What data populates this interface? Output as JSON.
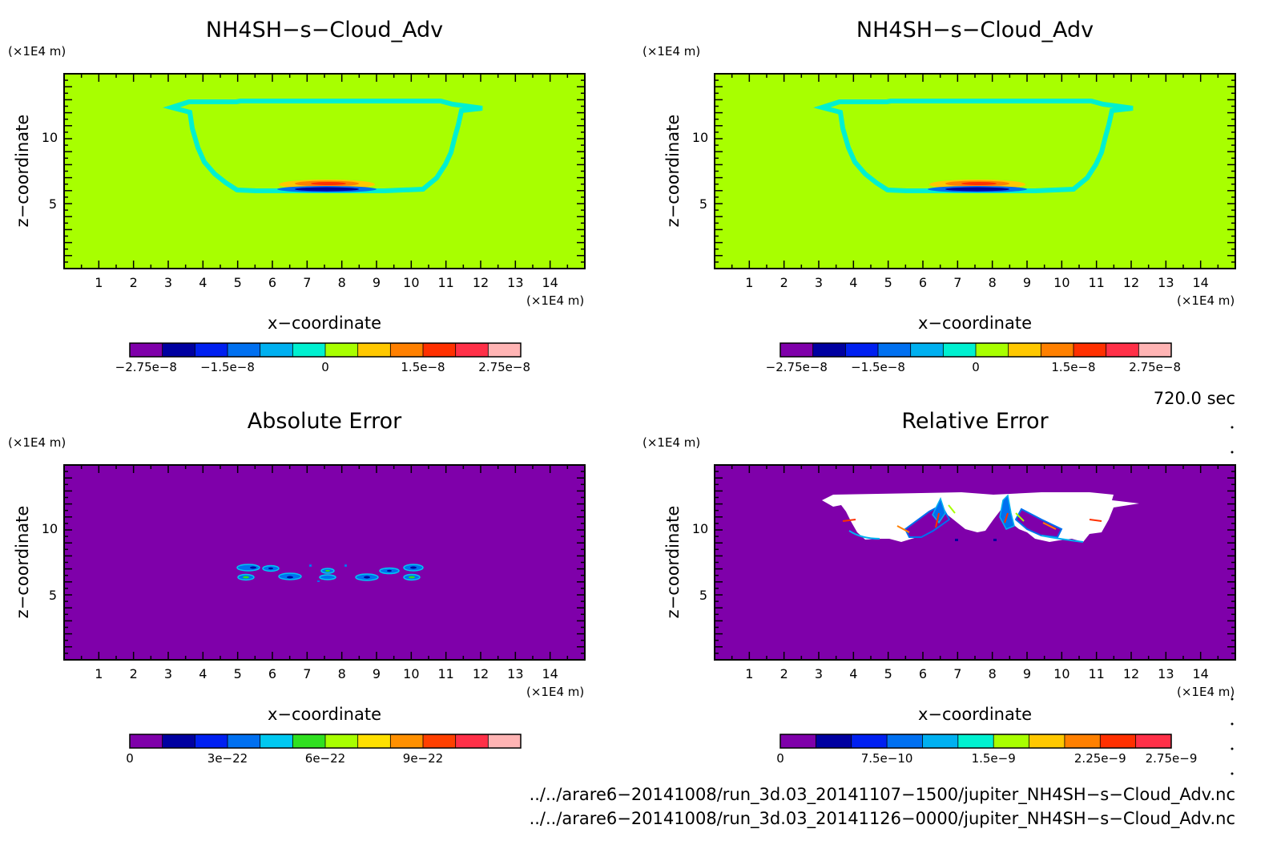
{
  "chart_data": [
    {
      "type": "heatmap",
      "title": "NH4SH−s−Cloud_Adv",
      "xlabel": "x−coordinate",
      "ylabel": "z−coordinate",
      "x_unit": "(×1E4 m)",
      "y_unit": "(×1E4 m)",
      "xlim": [
        0,
        15
      ],
      "ylim": [
        0,
        15
      ],
      "x_ticks": [
        "1",
        "2",
        "3",
        "4",
        "5",
        "6",
        "7",
        "8",
        "9",
        "10",
        "11",
        "12",
        "13",
        "14"
      ],
      "y_ticks": [
        "5",
        "10"
      ],
      "background_value": 0,
      "colorbar": {
        "colors": [
          "#7f00aa",
          "#0000a0",
          "#0020f0",
          "#0070f0",
          "#00b0f0",
          "#00f0d0",
          "#a8ff00",
          "#ffc800",
          "#ff8000",
          "#ff3000",
          "#ff3048",
          "#ffb4b4"
        ],
        "labels": [
          "−2.75e−8",
          "−1.5e−8",
          "0",
          "1.5e−8",
          "2.75e−8"
        ]
      }
    },
    {
      "type": "heatmap",
      "title": "NH4SH−s−Cloud_Adv",
      "xlabel": "x−coordinate",
      "ylabel": "z−coordinate",
      "x_unit": "(×1E4 m)",
      "y_unit": "(×1E4 m)",
      "xlim": [
        0,
        15
      ],
      "ylim": [
        0,
        15
      ],
      "x_ticks": [
        "1",
        "2",
        "3",
        "4",
        "5",
        "6",
        "7",
        "8",
        "9",
        "10",
        "11",
        "12",
        "13",
        "14"
      ],
      "y_ticks": [
        "5",
        "10"
      ],
      "background_value": 0,
      "colorbar": {
        "colors": [
          "#7f00aa",
          "#0000a0",
          "#0020f0",
          "#0070f0",
          "#00b0f0",
          "#00f0d0",
          "#a8ff00",
          "#ffc800",
          "#ff8000",
          "#ff3000",
          "#ff3048",
          "#ffb4b4"
        ],
        "labels": [
          "−2.75e−8",
          "−1.5e−8",
          "0",
          "1.5e−8",
          "2.75e−8"
        ]
      }
    },
    {
      "type": "heatmap",
      "title": "Absolute Error",
      "xlabel": "x−coordinate",
      "ylabel": "z−coordinate",
      "x_unit": "(×1E4 m)",
      "y_unit": "(×1E4 m)",
      "xlim": [
        0,
        15
      ],
      "ylim": [
        0,
        15
      ],
      "x_ticks": [
        "1",
        "2",
        "3",
        "4",
        "5",
        "6",
        "7",
        "8",
        "9",
        "10",
        "11",
        "12",
        "13",
        "14"
      ],
      "y_ticks": [
        "5",
        "10"
      ],
      "background_value": 0,
      "colorbar": {
        "colors": [
          "#7f00aa",
          "#0000a0",
          "#0020f0",
          "#0070f0",
          "#00c8f0",
          "#30e020",
          "#a8ff00",
          "#ffe000",
          "#ff9000",
          "#ff4000",
          "#ff3048",
          "#ffb4b4"
        ],
        "labels": [
          "0",
          "3e−22",
          "6e−22",
          "9e−22"
        ]
      }
    },
    {
      "type": "heatmap",
      "title": "Relative Error",
      "xlabel": "x−coordinate",
      "ylabel": "z−coordinate",
      "x_unit": "(×1E4 m)",
      "y_unit": "(×1E4 m)",
      "xlim": [
        0,
        15
      ],
      "ylim": [
        0,
        15
      ],
      "x_ticks": [
        "1",
        "2",
        "3",
        "4",
        "5",
        "6",
        "7",
        "8",
        "9",
        "10",
        "11",
        "12",
        "13",
        "14"
      ],
      "y_ticks": [
        "5",
        "10"
      ],
      "background_value": 0,
      "colorbar": {
        "colors": [
          "#7f00aa",
          "#0000a0",
          "#0020f0",
          "#0070f0",
          "#00b0f0",
          "#00f0d0",
          "#a8ff00",
          "#ffc800",
          "#ff8000",
          "#ff3000",
          "#ff3048"
        ],
        "labels": [
          "0",
          "7.5e−10",
          "1.5e−9",
          "2.25e−9",
          "2.75e−9"
        ]
      }
    }
  ],
  "time_label": "720.0 sec",
  "files": [
    "../../arare6−20141008/run_3d.03_20141107−1500/jupiter_NH4SH−s−Cloud_Adv.nc",
    "../../arare6−20141008/run_3d.03_20141126−0000/jupiter_NH4SH−s−Cloud_Adv.nc"
  ]
}
